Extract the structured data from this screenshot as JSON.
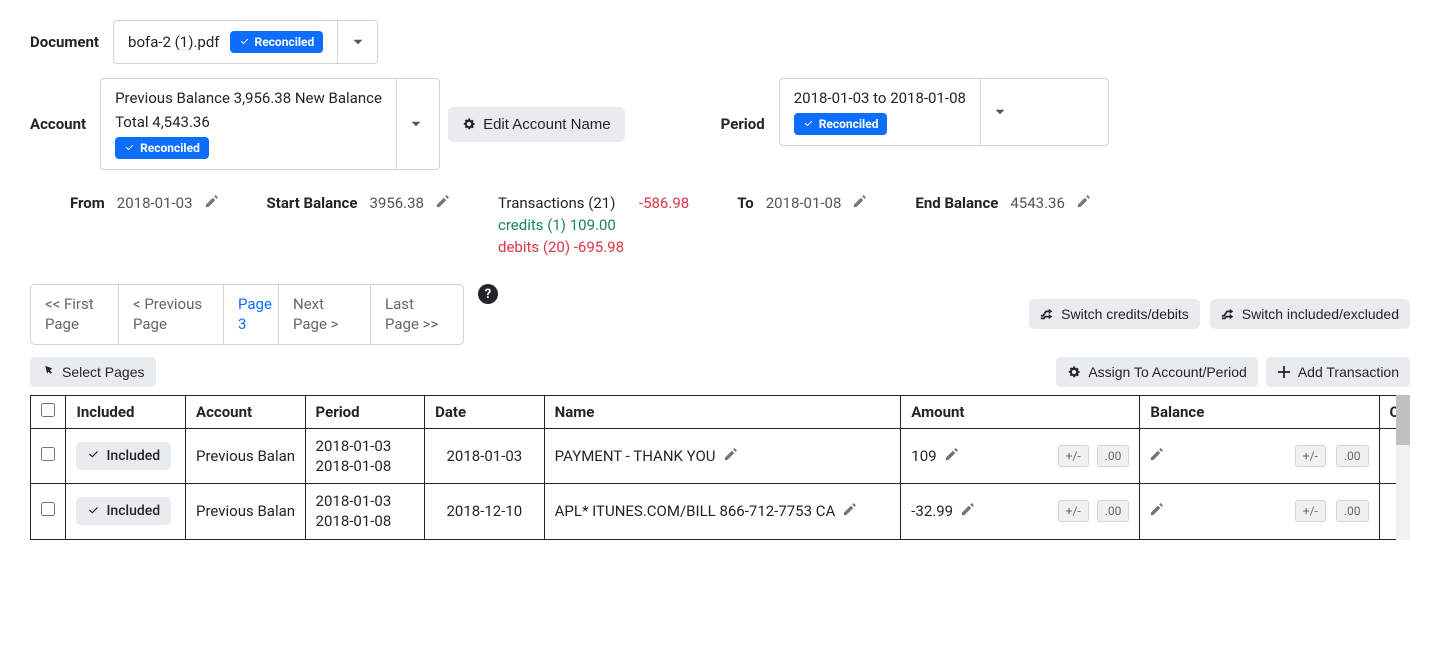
{
  "document": {
    "label": "Document",
    "filename": "bofa-2 (1).pdf",
    "badge": "Reconciled"
  },
  "account": {
    "label": "Account",
    "line1": "Previous Balance 3,956.38 New Balance",
    "line2": "Total 4,543.36",
    "badge": "Reconciled",
    "edit_btn": "Edit Account Name"
  },
  "period": {
    "label": "Period",
    "range": "2018-01-03 to 2018-01-08",
    "badge": "Reconciled"
  },
  "stats": {
    "from_label": "From",
    "from_val": "2018-01-03",
    "start_bal_label": "Start Balance",
    "start_bal_val": "3956.38",
    "txn_label": "Transactions (21)",
    "txn_val": "-586.98",
    "credits_label": "credits (1) 109.00",
    "debits_label": "debits (20) -695.98",
    "to_label": "To",
    "to_val": "2018-01-08",
    "end_bal_label": "End Balance",
    "end_bal_val": "4543.36"
  },
  "pager": {
    "first": "<< First Page",
    "prev": "< Previous Page",
    "current": "Page 3",
    "next": "Next Page >",
    "last": "Last Page >>"
  },
  "buttons": {
    "switch_cd": "Switch credits/debits",
    "switch_ie": "Switch included/excluded",
    "assign": "Assign To Account/Period",
    "add_txn": "Add Transaction",
    "select_pages": "Select Pages"
  },
  "table": {
    "headers": {
      "included": "Included",
      "account": "Account",
      "period": "Period",
      "date": "Date",
      "name": "Name",
      "amount": "Amount",
      "balance": "Balance",
      "che": "Che"
    },
    "rows": [
      {
        "included": "Included",
        "account": "Previous Balan",
        "period_from": "2018-01-03",
        "period_to": "2018-01-08",
        "date": "2018-01-03",
        "name": "PAYMENT - THANK YOU",
        "amount": "109",
        "pm": "+/-",
        "zz": ".00"
      },
      {
        "included": "Included",
        "account": "Previous Balan",
        "period_from": "2018-01-03",
        "period_to": "2018-01-08",
        "date": "2018-12-10",
        "name": "APL* ITUNES.COM/BILL 866-712-7753 CA",
        "amount": "-32.99",
        "pm": "+/-",
        "zz": ".00"
      }
    ]
  }
}
